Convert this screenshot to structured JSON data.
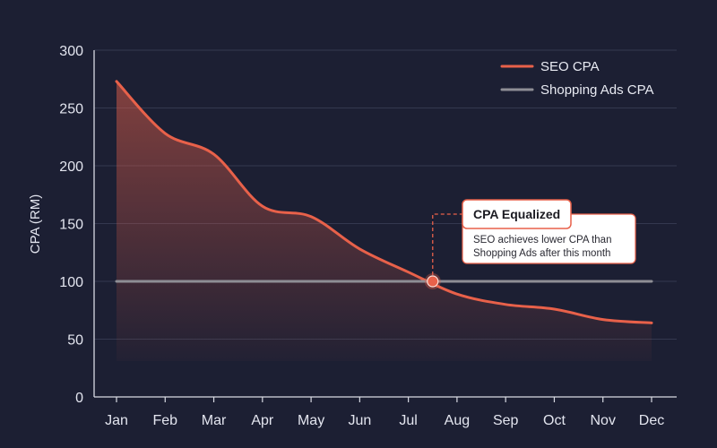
{
  "chart_data": {
    "type": "line",
    "categories": [
      "Jan",
      "Feb",
      "Mar",
      "Apr",
      "May",
      "Jun",
      "Jul",
      "Aug",
      "Sep",
      "Oct",
      "Nov",
      "Dec"
    ],
    "series": [
      {
        "name": "SEO CPA",
        "values": [
          273,
          228,
          210,
          165,
          156,
          128,
          108,
          89,
          80,
          76,
          67,
          64
        ],
        "color": "#e8614a",
        "area_fill": true
      },
      {
        "name": "Shopping Ads CPA",
        "values": [
          100,
          100,
          100,
          100,
          100,
          100,
          100,
          100,
          100,
          100,
          100,
          100
        ],
        "color": "#8e8e95"
      }
    ],
    "ylabel": "CPA (RM)",
    "xlabel": "",
    "ylim": [
      0,
      300
    ],
    "yticks": [
      0,
      50,
      100,
      150,
      200,
      250,
      300
    ],
    "grid": "horizontal",
    "legend_position": "top-right",
    "annotation": {
      "title": "CPA Equalized",
      "lines": [
        "SEO achieves lower CPA than",
        "Shopping Ads after this month"
      ],
      "at_x_index": 6.5,
      "at_y": 100
    }
  },
  "colors": {
    "background": "#1c1f33",
    "grid": "#34384f",
    "axis": "#d8dae3",
    "accent": "#e8614a"
  }
}
